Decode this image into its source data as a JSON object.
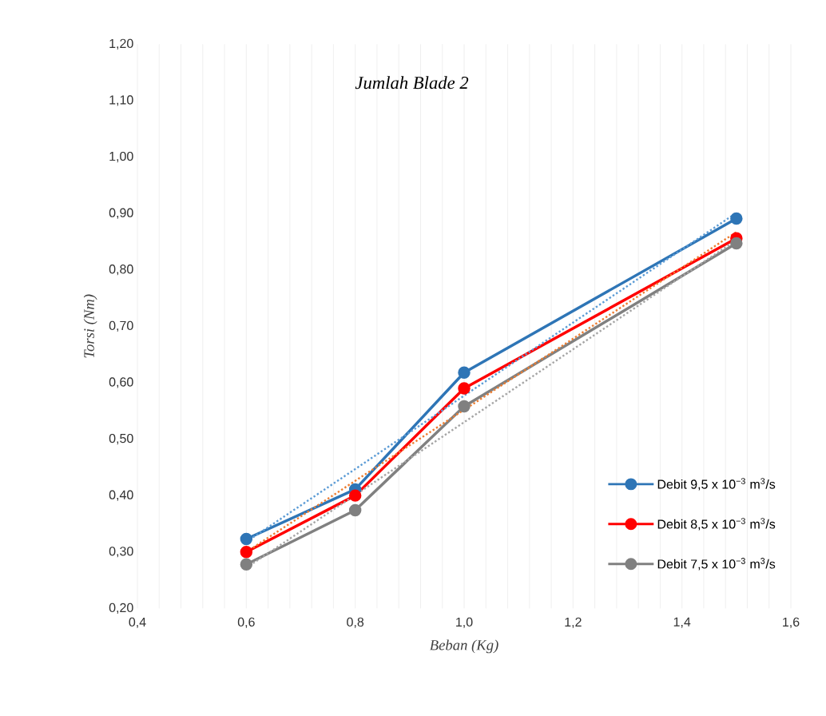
{
  "chart_data": {
    "type": "line",
    "title": "Jumlah Blade 2",
    "xlabel": "Beban (Kg)",
    "ylabel": "Torsi (Nm)",
    "x": [
      0.6,
      0.8,
      1.0,
      1.5
    ],
    "series": [
      {
        "name": "Debit 9,5 x 10$^{−3}$ m$^{3}$/s",
        "color": "#2e75b6",
        "values": [
          0.323,
          0.411,
          0.618,
          0.891
        ]
      },
      {
        "name": "Debit 8,5 x 10$^{−3}$ m$^{3}$/s",
        "color": "#ff0000",
        "values": [
          0.3,
          0.4,
          0.59,
          0.856
        ]
      },
      {
        "name": "Debit 7,5 x 10$^{−3}$ m$^{3}$/s",
        "color": "#808080",
        "values": [
          0.278,
          0.374,
          0.558,
          0.847
        ]
      },
      {
        "type": "line",
        "color": "#5b9bd5",
        "line_style": "dotted",
        "marker": "none",
        "values": [
          0.318,
          0.447,
          0.577,
          0.901
        ]
      },
      {
        "type": "line",
        "color": "#ed7d31",
        "line_style": "dotted",
        "marker": "none",
        "values": [
          0.3,
          0.426,
          0.552,
          0.867
        ]
      },
      {
        "type": "line",
        "color": "#a5a5a5",
        "line_style": "dotted",
        "marker": "none",
        "values": [
          0.272,
          0.401,
          0.53,
          0.853
        ]
      }
    ],
    "xlim": [
      0.4,
      1.6
    ],
    "xticks": [
      {
        "value": 0.4,
        "label": "0,4"
      },
      {
        "value": 0.6,
        "label": "0,6"
      },
      {
        "value": 0.8,
        "label": "0,8"
      },
      {
        "value": 1.0,
        "label": "1,0"
      },
      {
        "value": 1.2,
        "label": "1,2"
      },
      {
        "value": 1.4,
        "label": "1,4"
      },
      {
        "value": 1.6,
        "label": "1,6"
      }
    ],
    "ylim": [
      0.2,
      1.2
    ],
    "yticks": [
      {
        "value": 0.2,
        "label": "0,20"
      },
      {
        "value": 0.3,
        "label": "0,30"
      },
      {
        "value": 0.4,
        "label": "0,40"
      },
      {
        "value": 0.5,
        "label": "0,50"
      },
      {
        "value": 0.6,
        "label": "0,60"
      },
      {
        "value": 0.7,
        "label": "0,70"
      },
      {
        "value": 0.8,
        "label": "0,80"
      },
      {
        "value": 0.9,
        "label": "0,90"
      },
      {
        "value": 1.0,
        "label": "1,00"
      },
      {
        "value": 1.1,
        "label": "1,10"
      },
      {
        "value": 1.2,
        "label": "1,20"
      }
    ],
    "grid": "x",
    "legend": "right",
    "marker": "circle",
    "line_style": "solid"
  }
}
